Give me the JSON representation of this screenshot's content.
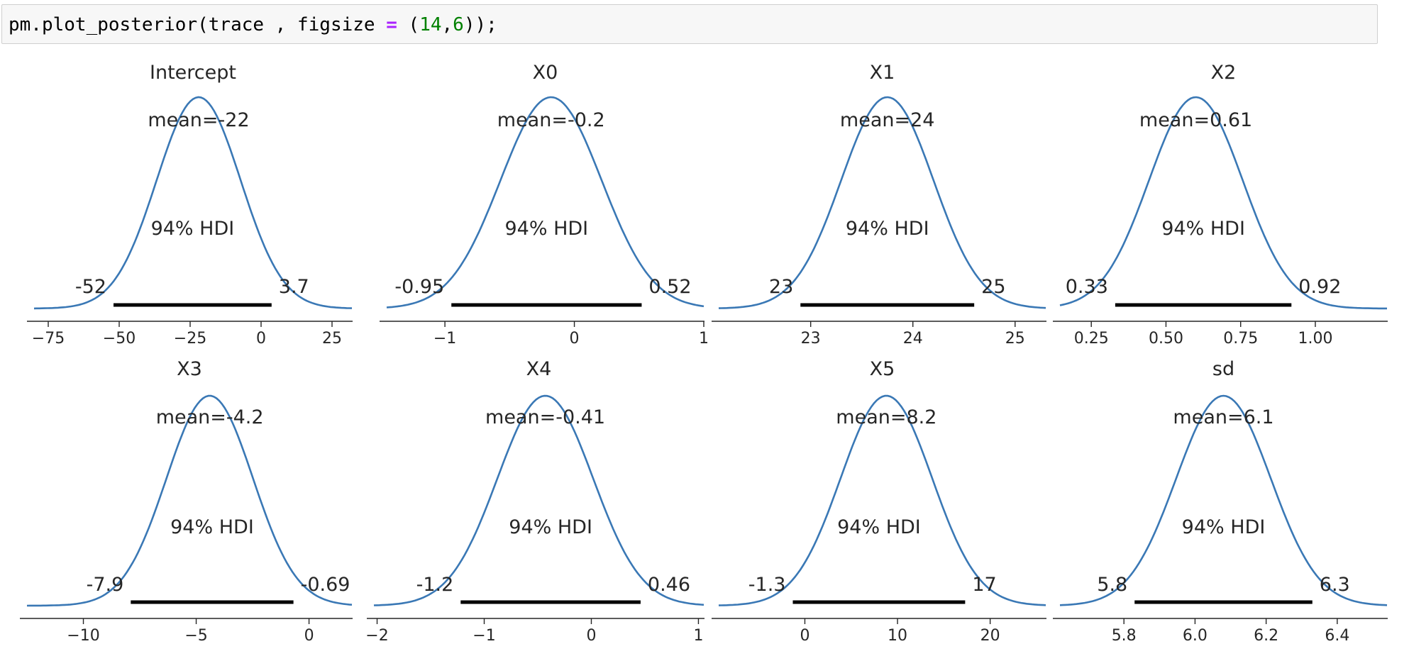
{
  "code_cell": {
    "tokens": [
      {
        "text": "pm.plot_posterior(trace , figsize ",
        "kind": "plain"
      },
      {
        "text": "=",
        "kind": "op"
      },
      {
        "text": " (",
        "kind": "plain"
      },
      {
        "text": "14",
        "kind": "num"
      },
      {
        "text": ",",
        "kind": "plain"
      },
      {
        "text": "6",
        "kind": "num"
      },
      {
        "text": "));",
        "kind": "plain"
      }
    ]
  },
  "chart_data": [
    {
      "type": "area",
      "title": "Intercept",
      "mean_label": "mean=-22",
      "hdi_label": "94% HDI",
      "hdi": [
        -52,
        3.7
      ],
      "hdi_tick_labels": [
        "-52",
        "3.7"
      ],
      "peak": -22,
      "xlim": [
        -80,
        32
      ],
      "xticks": [
        -75,
        -50,
        -25,
        0,
        25
      ],
      "xtick_labels": [
        "−75",
        "−50",
        "−25",
        "0",
        "25"
      ],
      "line_color": "#3a78b5"
    },
    {
      "type": "area",
      "title": "X0",
      "mean_label": "mean=-0.2",
      "hdi_label": "94% HDI",
      "hdi": [
        -0.95,
        0.52
      ],
      "hdi_tick_labels": [
        "-0.95",
        "0.52"
      ],
      "peak": -0.18,
      "xlim": [
        -1.45,
        1.0
      ],
      "xticks": [
        -1,
        0,
        1
      ],
      "xtick_labels": [
        "−1",
        "0",
        "1"
      ],
      "line_color": "#3a78b5"
    },
    {
      "type": "area",
      "title": "X1",
      "mean_label": "mean=24",
      "hdi_label": "94% HDI",
      "hdi": [
        22.9,
        24.6
      ],
      "hdi_tick_labels": [
        "23",
        "25"
      ],
      "peak": 23.75,
      "xlim": [
        22.1,
        25.3
      ],
      "xticks": [
        23,
        24,
        25
      ],
      "xtick_labels": [
        "23",
        "24",
        "25"
      ],
      "line_color": "#3a78b5"
    },
    {
      "type": "area",
      "title": "X2",
      "mean_label": "mean=0.61",
      "hdi_label": "94% HDI",
      "hdi": [
        0.33,
        0.92
      ],
      "hdi_tick_labels": [
        "0.33",
        "0.92"
      ],
      "peak": 0.6,
      "xlim": [
        0.145,
        1.24
      ],
      "xticks": [
        0.25,
        0.5,
        0.75,
        1.0
      ],
      "xtick_labels": [
        "0.25",
        "0.50",
        "0.75",
        "1.00"
      ],
      "line_color": "#3a78b5"
    },
    {
      "type": "area",
      "title": "X3",
      "mean_label": "mean=-4.2",
      "hdi_label": "94% HDI",
      "hdi": [
        -7.9,
        -0.69
      ],
      "hdi_tick_labels": [
        "-7.9",
        "-0.69"
      ],
      "peak": -4.4,
      "xlim": [
        -12.5,
        1.9
      ],
      "xticks": [
        -10,
        -5,
        0
      ],
      "xtick_labels": [
        "−10",
        "−5",
        "0"
      ],
      "line_color": "#3a78b5"
    },
    {
      "type": "area",
      "title": "X4",
      "mean_label": "mean=-0.41",
      "hdi_label": "94% HDI",
      "hdi": [
        -1.22,
        0.46
      ],
      "hdi_tick_labels": [
        "-1.2",
        "0.46"
      ],
      "peak": -0.43,
      "xlim": [
        -2.03,
        1.05
      ],
      "xticks": [
        -2,
        -1,
        0,
        1
      ],
      "xtick_labels": [
        "−2",
        "−1",
        "0",
        "1"
      ],
      "line_color": "#3a78b5"
    },
    {
      "type": "area",
      "title": "X5",
      "mean_label": "mean=8.2",
      "hdi_label": "94% HDI",
      "hdi": [
        -1.3,
        17.3
      ],
      "hdi_tick_labels": [
        "-1.3",
        "17"
      ],
      "peak": 8.8,
      "xlim": [
        -9.3,
        26.0
      ],
      "xticks": [
        0,
        10,
        20
      ],
      "xtick_labels": [
        "0",
        "10",
        "20"
      ],
      "line_color": "#3a78b5"
    },
    {
      "type": "area",
      "title": "sd",
      "mean_label": "mean=6.1",
      "hdi_label": "94% HDI",
      "hdi": [
        5.83,
        6.33
      ],
      "hdi_tick_labels": [
        "5.8",
        "6.3"
      ],
      "peak": 6.08,
      "xlim": [
        5.62,
        6.54
      ],
      "xticks": [
        5.8,
        6.0,
        6.2,
        6.4
      ],
      "xtick_labels": [
        "5.8",
        "6.0",
        "6.2",
        "6.4"
      ],
      "line_color": "#3a78b5"
    }
  ]
}
